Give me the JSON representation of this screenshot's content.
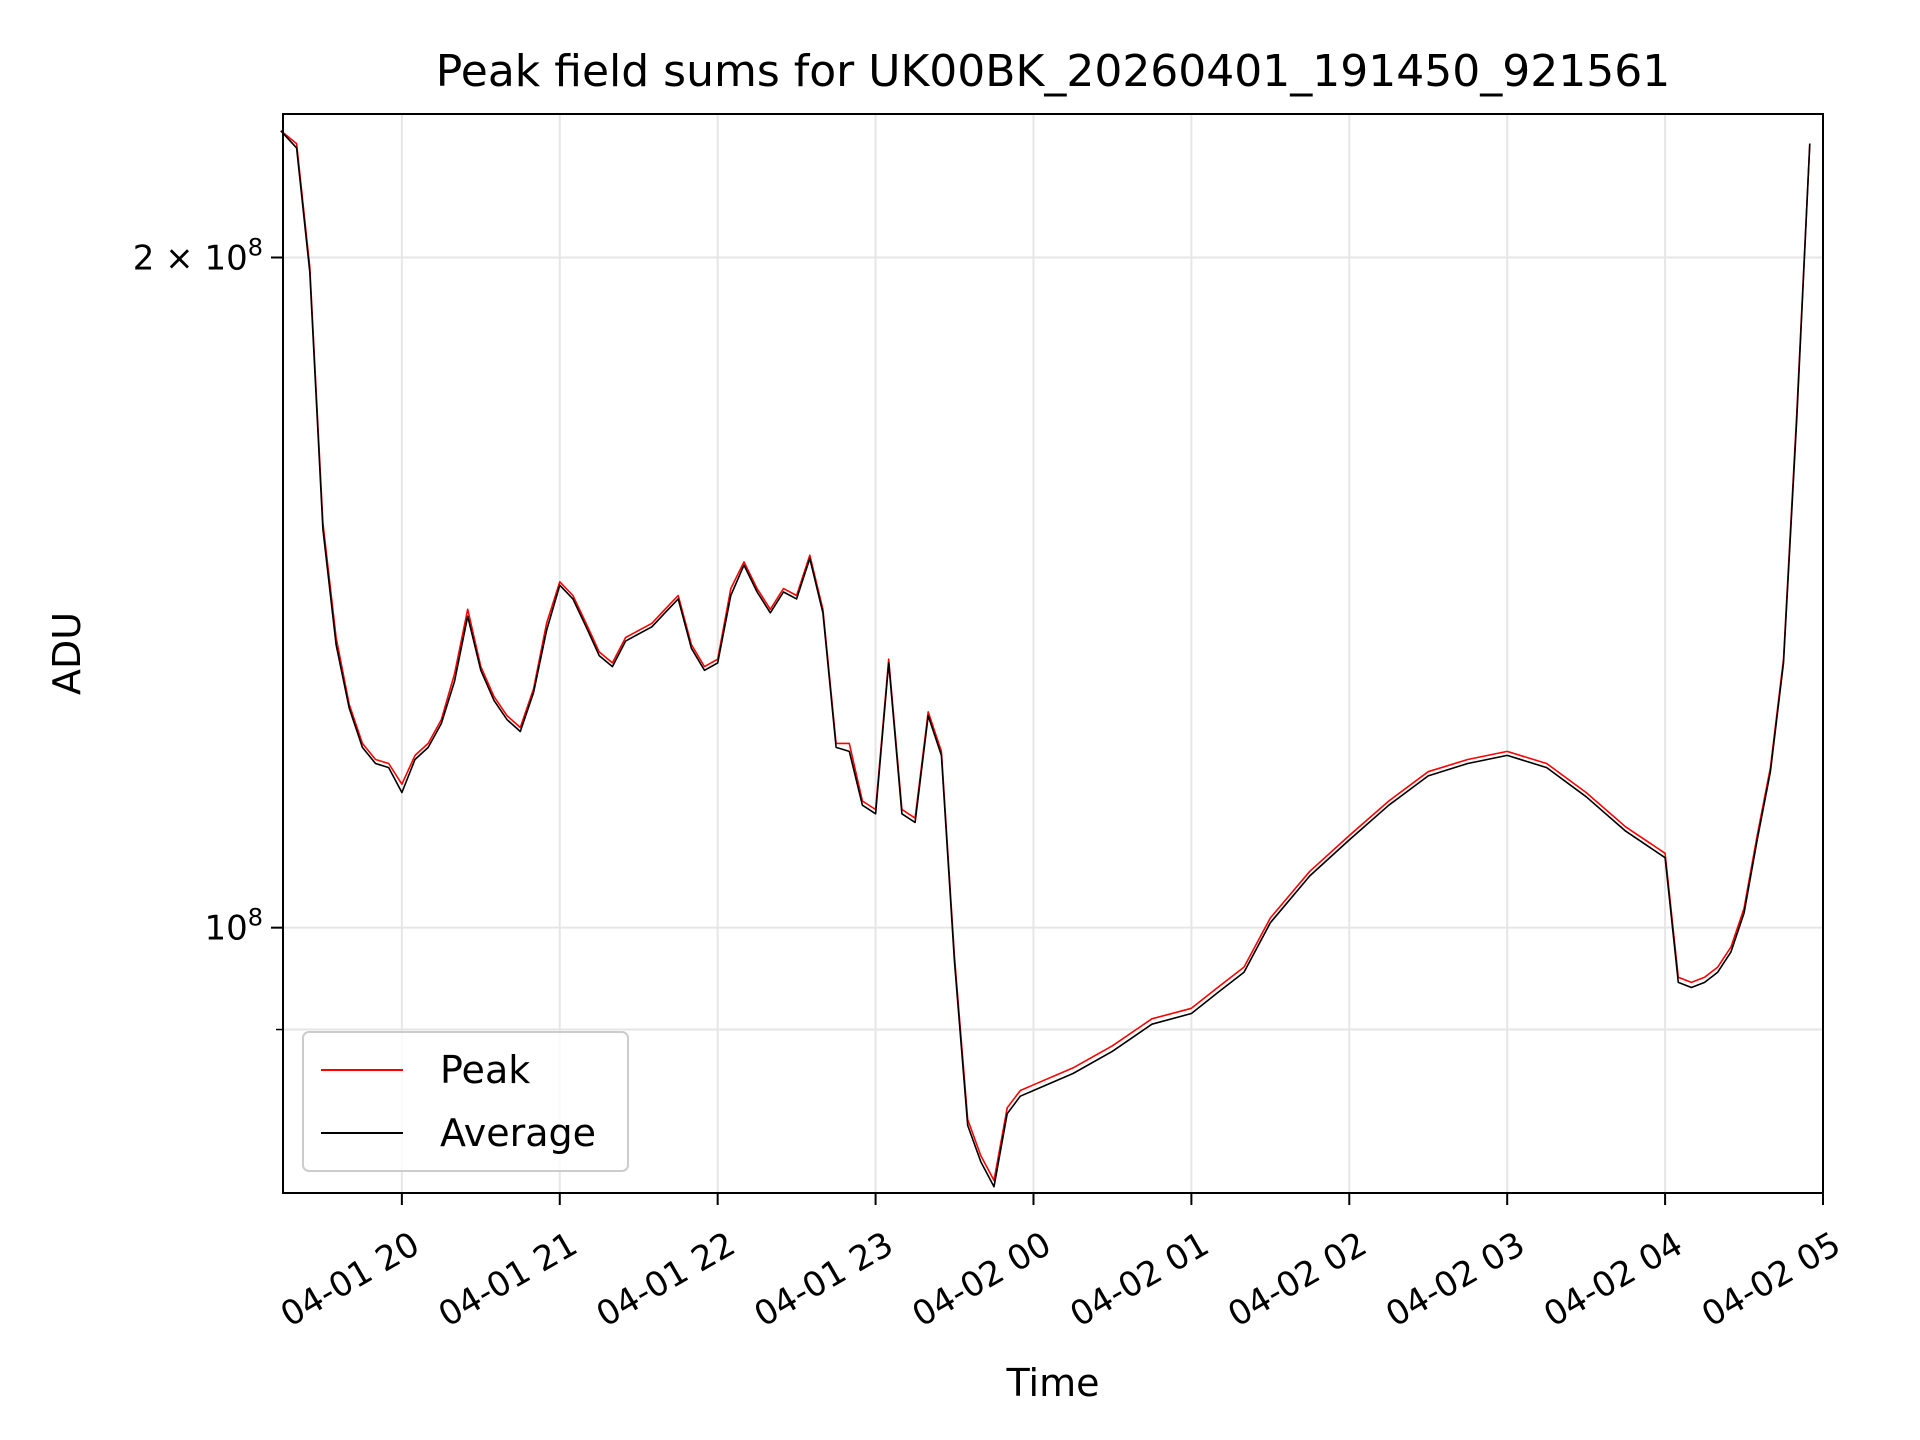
{
  "chart_data": {
    "type": "line",
    "title": "Peak field sums for UK00BK_20260401_191450_921561",
    "xlabel": "Time",
    "ylabel": "ADU",
    "x_scale": "time",
    "y_scale": "log",
    "xlim": [
      "2026-04-01 19:14:50",
      "2026-04-02 05:00:00"
    ],
    "ylim": [
      76000000,
      232000000
    ],
    "grid": true,
    "legend_position": "lower-left",
    "x_ticks": [
      {
        "value": "2026-04-01 20:00",
        "label": "04-01 20"
      },
      {
        "value": "2026-04-01 21:00",
        "label": "04-01 21"
      },
      {
        "value": "2026-04-01 22:00",
        "label": "04-01 22"
      },
      {
        "value": "2026-04-01 23:00",
        "label": "04-01 23"
      },
      {
        "value": "2026-04-02 00:00",
        "label": "04-02 00"
      },
      {
        "value": "2026-04-02 01:00",
        "label": "04-02 01"
      },
      {
        "value": "2026-04-02 02:00",
        "label": "04-02 02"
      },
      {
        "value": "2026-04-02 03:00",
        "label": "04-02 03"
      },
      {
        "value": "2026-04-02 04:00",
        "label": "04-02 04"
      },
      {
        "value": "2026-04-02 05:00",
        "label": "04-02 05"
      }
    ],
    "y_ticks": [
      {
        "value": 100000000,
        "base": "10",
        "exp": "8",
        "mantissa": ""
      },
      {
        "value": 200000000,
        "base": "10",
        "exp": "8",
        "mantissa": "2 × "
      }
    ],
    "y_minor_ticks": [
      90000000
    ],
    "series": [
      {
        "name": "Peak",
        "color": "#ff0000",
        "x": [
          "2026-04-01 19:14",
          "2026-04-01 19:20",
          "2026-04-01 19:25",
          "2026-04-01 19:30",
          "2026-04-01 19:35",
          "2026-04-01 19:40",
          "2026-04-01 19:45",
          "2026-04-01 19:50",
          "2026-04-01 19:55",
          "2026-04-01 20:00",
          "2026-04-01 20:05",
          "2026-04-01 20:10",
          "2026-04-01 20:15",
          "2026-04-01 20:20",
          "2026-04-01 20:25",
          "2026-04-01 20:30",
          "2026-04-01 20:35",
          "2026-04-01 20:40",
          "2026-04-01 20:45",
          "2026-04-01 20:50",
          "2026-04-01 20:55",
          "2026-04-01 21:00",
          "2026-04-01 21:05",
          "2026-04-01 21:10",
          "2026-04-01 21:15",
          "2026-04-01 21:20",
          "2026-04-01 21:25",
          "2026-04-01 21:30",
          "2026-04-01 21:35",
          "2026-04-01 21:40",
          "2026-04-01 21:45",
          "2026-04-01 21:50",
          "2026-04-01 21:55",
          "2026-04-01 22:00",
          "2026-04-01 22:05",
          "2026-04-01 22:10",
          "2026-04-01 22:15",
          "2026-04-01 22:20",
          "2026-04-01 22:25",
          "2026-04-01 22:30",
          "2026-04-01 22:35",
          "2026-04-01 22:40",
          "2026-04-01 22:45",
          "2026-04-01 22:50",
          "2026-04-01 22:55",
          "2026-04-01 23:00",
          "2026-04-01 23:05",
          "2026-04-01 23:10",
          "2026-04-01 23:15",
          "2026-04-01 23:20",
          "2026-04-01 23:25",
          "2026-04-01 23:30",
          "2026-04-01 23:35",
          "2026-04-01 23:40",
          "2026-04-01 23:45",
          "2026-04-01 23:50",
          "2026-04-01 23:55",
          "2026-04-02 00:00",
          "2026-04-02 00:15",
          "2026-04-02 00:30",
          "2026-04-02 00:45",
          "2026-04-02 01:00",
          "2026-04-02 01:10",
          "2026-04-02 01:20",
          "2026-04-02 01:30",
          "2026-04-02 01:45",
          "2026-04-02 02:00",
          "2026-04-02 02:15",
          "2026-04-02 02:30",
          "2026-04-02 02:45",
          "2026-04-02 03:00",
          "2026-04-02 03:15",
          "2026-04-02 03:30",
          "2026-04-02 03:45",
          "2026-04-02 04:00",
          "2026-04-02 04:05",
          "2026-04-02 04:10",
          "2026-04-02 04:15",
          "2026-04-02 04:20",
          "2026-04-02 04:25",
          "2026-04-02 04:30",
          "2026-04-02 04:35",
          "2026-04-02 04:40",
          "2026-04-02 04:45",
          "2026-04-02 04:50",
          "2026-04-02 04:55"
        ],
        "y": [
          228000000,
          225000000,
          198000000,
          152000000,
          135000000,
          126000000,
          121000000,
          119000000,
          118500000,
          116000000,
          119500000,
          121000000,
          124000000,
          130000000,
          139000000,
          131000000,
          127000000,
          124500000,
          123000000,
          128000000,
          137000000,
          143000000,
          141000000,
          137000000,
          133000000,
          131500000,
          135000000,
          136000000,
          137000000,
          139000000,
          141000000,
          134000000,
          131000000,
          132000000,
          142000000,
          146000000,
          142000000,
          139000000,
          142000000,
          141000000,
          147000000,
          139000000,
          121000000,
          121000000,
          114000000,
          113000000,
          132000000,
          113000000,
          112000000,
          125000000,
          120000000,
          97000000,
          82000000,
          79000000,
          77000000,
          83000000,
          84500000,
          85000000,
          86500000,
          88500000,
          91000000,
          92000000,
          94000000,
          96000000,
          101000000,
          106000000,
          110000000,
          114000000,
          117500000,
          119000000,
          120000000,
          118500000,
          115000000,
          111000000,
          108000000,
          95000000,
          94500000,
          95000000,
          96000000,
          98000000,
          102000000,
          110000000,
          118000000,
          132000000,
          170000000,
          225000000
        ]
      },
      {
        "name": "Average",
        "color": "#000000",
        "x": [
          "2026-04-01 19:14",
          "2026-04-01 19:20",
          "2026-04-01 19:25",
          "2026-04-01 19:30",
          "2026-04-01 19:35",
          "2026-04-01 19:40",
          "2026-04-01 19:45",
          "2026-04-01 19:50",
          "2026-04-01 19:55",
          "2026-04-01 20:00",
          "2026-04-01 20:05",
          "2026-04-01 20:10",
          "2026-04-01 20:15",
          "2026-04-01 20:20",
          "2026-04-01 20:25",
          "2026-04-01 20:30",
          "2026-04-01 20:35",
          "2026-04-01 20:40",
          "2026-04-01 20:45",
          "2026-04-01 20:50",
          "2026-04-01 20:55",
          "2026-04-01 21:00",
          "2026-04-01 21:05",
          "2026-04-01 21:10",
          "2026-04-01 21:15",
          "2026-04-01 21:20",
          "2026-04-01 21:25",
          "2026-04-01 21:30",
          "2026-04-01 21:35",
          "2026-04-01 21:40",
          "2026-04-01 21:45",
          "2026-04-01 21:50",
          "2026-04-01 21:55",
          "2026-04-01 22:00",
          "2026-04-01 22:05",
          "2026-04-01 22:10",
          "2026-04-01 22:15",
          "2026-04-01 22:20",
          "2026-04-01 22:25",
          "2026-04-01 22:30",
          "2026-04-01 22:35",
          "2026-04-01 22:40",
          "2026-04-01 22:45",
          "2026-04-01 22:50",
          "2026-04-01 22:55",
          "2026-04-01 23:00",
          "2026-04-01 23:05",
          "2026-04-01 23:10",
          "2026-04-01 23:15",
          "2026-04-01 23:20",
          "2026-04-01 23:25",
          "2026-04-01 23:30",
          "2026-04-01 23:35",
          "2026-04-01 23:40",
          "2026-04-01 23:45",
          "2026-04-01 23:50",
          "2026-04-01 23:55",
          "2026-04-02 00:00",
          "2026-04-02 00:15",
          "2026-04-02 00:30",
          "2026-04-02 00:45",
          "2026-04-02 01:00",
          "2026-04-02 01:10",
          "2026-04-02 01:20",
          "2026-04-02 01:30",
          "2026-04-02 01:45",
          "2026-04-02 02:00",
          "2026-04-02 02:15",
          "2026-04-02 02:30",
          "2026-04-02 02:45",
          "2026-04-02 03:00",
          "2026-04-02 03:15",
          "2026-04-02 03:30",
          "2026-04-02 03:45",
          "2026-04-02 04:00",
          "2026-04-02 04:05",
          "2026-04-02 04:10",
          "2026-04-02 04:15",
          "2026-04-02 04:20",
          "2026-04-02 04:25",
          "2026-04-02 04:30",
          "2026-04-02 04:35",
          "2026-04-02 04:40",
          "2026-04-02 04:45",
          "2026-04-02 04:50",
          "2026-04-02 04:55"
        ],
        "y": [
          228000000,
          224000000,
          197000000,
          151000000,
          134000000,
          125500000,
          120500000,
          118500000,
          118000000,
          115000000,
          119000000,
          120500000,
          123500000,
          129000000,
          138000000,
          130500000,
          126500000,
          124000000,
          122500000,
          127500000,
          136000000,
          142500000,
          140500000,
          136500000,
          132500000,
          131000000,
          134500000,
          135500000,
          136500000,
          138500000,
          140500000,
          133500000,
          130500000,
          131500000,
          141000000,
          145500000,
          141500000,
          138500000,
          141500000,
          140500000,
          146500000,
          138500000,
          120500000,
          120000000,
          113500000,
          112500000,
          131500000,
          112500000,
          111500000,
          124500000,
          119500000,
          96500000,
          81500000,
          78500000,
          76500000,
          82500000,
          84000000,
          84500000,
          86000000,
          88000000,
          90500000,
          91500000,
          93500000,
          95500000,
          100500000,
          105500000,
          109500000,
          113500000,
          117000000,
          118500000,
          119500000,
          118000000,
          114500000,
          110500000,
          107500000,
          94500000,
          94000000,
          94500000,
          95500000,
          97500000,
          101500000,
          109500000,
          117500000,
          131500000,
          169000000,
          225000000
        ]
      }
    ]
  }
}
